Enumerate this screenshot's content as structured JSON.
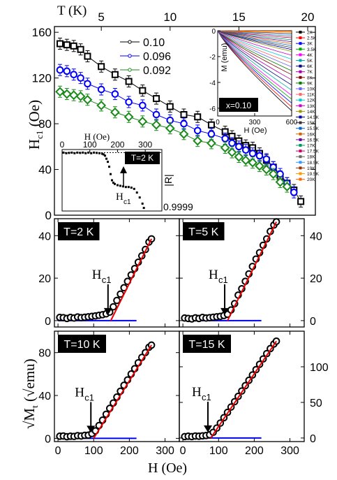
{
  "chart_data": [
    {
      "type": "scatter",
      "xlabel": "T (K)",
      "ylabel": "Hc1 (Oe)",
      "ylim": [
        0,
        165
      ],
      "xlim": [
        2,
        20
      ],
      "x_ticks": [
        "5",
        "10",
        "15",
        "20"
      ],
      "y_ticks": [
        "0",
        "40",
        "80",
        "120",
        "160"
      ],
      "legend_position": "top-center",
      "series": [
        {
          "name": "0.10",
          "color": "#000000",
          "marker": "square",
          "x": [
            2,
            2.5,
            3,
            3.5,
            4,
            5,
            6,
            7,
            8,
            9,
            10,
            11,
            12,
            13,
            14,
            14.5,
            15,
            15.5,
            16,
            16.5,
            17,
            17.5,
            18,
            18.5,
            19,
            19.5
          ],
          "y": [
            150,
            149,
            148,
            145,
            139,
            130,
            123,
            117,
            109,
            102,
            95,
            88,
            86,
            79,
            73,
            69,
            65,
            61,
            59,
            54,
            48,
            42,
            34,
            28,
            22,
            12
          ]
        },
        {
          "name": "0.096",
          "color": "#0000ff",
          "marker": "circle",
          "x": [
            2,
            2.5,
            3,
            3.5,
            4,
            5,
            6,
            7,
            8,
            9,
            10,
            11,
            12,
            13,
            14,
            14.5,
            15,
            15.5,
            16,
            16.5,
            17,
            17.5,
            18,
            18.5,
            19
          ],
          "y": [
            127,
            126,
            123,
            120,
            115,
            110,
            106,
            99,
            96,
            88,
            83,
            80,
            74,
            71,
            67,
            63,
            60,
            57,
            54,
            52,
            49,
            42,
            36,
            28,
            20
          ]
        },
        {
          "name": "0.092",
          "color": "#1a8a1a",
          "marker": "diamond",
          "x": [
            2,
            2.5,
            3,
            3.5,
            4,
            5,
            6,
            7,
            8,
            9,
            10,
            11,
            12,
            13,
            14,
            14.5,
            15,
            15.5,
            16,
            16.5,
            17,
            17.5,
            18,
            18.5
          ],
          "y": [
            108,
            106,
            105,
            104,
            101,
            96,
            90,
            86,
            82,
            79,
            76,
            71,
            65,
            63,
            59,
            55,
            51,
            48,
            46,
            43,
            40,
            36,
            29,
            25
          ]
        }
      ]
    },
    {
      "type": "line",
      "xlabel": "H (Oe)",
      "ylabel": "M (emu)",
      "xlim": [
        0,
        600
      ],
      "ylim": [
        -6.6,
        0
      ],
      "x_ticks": [
        "0",
        "300",
        "600"
      ],
      "y_ticks": [
        "0",
        "-2",
        "-4",
        "-6"
      ],
      "annotation": "x=0.10",
      "legend_position": "right",
      "legend_labels": [
        "2K",
        "2.5K",
        "3K",
        "3.5K",
        "4K",
        "5K",
        "6K",
        "7K",
        "8K",
        "9K",
        "10K",
        "11K",
        "12K",
        "13K",
        "14K",
        "14.5K",
        "15K",
        "15.5K",
        "16K",
        "16.5K",
        "17K",
        "17.5K",
        "18K",
        "18.5K",
        "19K",
        "19.5K",
        "20K"
      ],
      "legend_colors": [
        "#000000",
        "#ff0000",
        "#0000ff",
        "#00aa00",
        "#ff00ff",
        "#00aaaa",
        "#000080",
        "#aa00aa",
        "#800000",
        "#008000",
        "#6666ff",
        "#ff6666",
        "#00cccc",
        "#cc00cc",
        "#999900",
        "#0000aa",
        "#333333",
        "#0066cc",
        "#cc6600",
        "#660099",
        "#009966",
        "#cc0066",
        "#666666",
        "#3399ff",
        "#993300",
        "#ff9900",
        "#ff6600"
      ],
      "end_values": [
        -6.2,
        -5.9,
        -5.6,
        -5.3,
        -5.0,
        -4.6,
        -4.2,
        -3.8,
        -3.4,
        -3.1,
        -2.8,
        -2.5,
        -2.2,
        -1.9,
        -1.6,
        -1.45,
        -1.3,
        -1.15,
        -1.0,
        -0.85,
        -0.7,
        -0.55,
        -0.42,
        -0.3,
        -0.2,
        -0.1,
        -0.03
      ]
    },
    {
      "type": "scatter",
      "xlabel": "H (Oe)",
      "ylabel": "|R|",
      "xlim": [
        0,
        360
      ],
      "x_ticks": [
        "0",
        "100",
        "200",
        "300"
      ],
      "annotation": "T=2 K",
      "arrow_label": "Hc1",
      "value_label": "0.9999",
      "points": [
        [
          5,
          0.95
        ],
        [
          15,
          0.94
        ],
        [
          25,
          0.945
        ],
        [
          35,
          0.95
        ],
        [
          45,
          0.94
        ],
        [
          55,
          0.95
        ],
        [
          65,
          0.945
        ],
        [
          75,
          0.95
        ],
        [
          85,
          0.94
        ],
        [
          95,
          0.95
        ],
        [
          105,
          0.94
        ],
        [
          115,
          0.95
        ],
        [
          125,
          0.945
        ],
        [
          135,
          0.94
        ],
        [
          145,
          0.93
        ],
        [
          150,
          0.92
        ],
        [
          155,
          0.9
        ],
        [
          160,
          0.85
        ],
        [
          165,
          0.8
        ],
        [
          170,
          0.72
        ],
        [
          175,
          0.6
        ],
        [
          180,
          0.5
        ],
        [
          185,
          0.46
        ],
        [
          190,
          0.44
        ],
        [
          200,
          0.42
        ],
        [
          210,
          0.41
        ],
        [
          220,
          0.4
        ],
        [
          230,
          0.39
        ],
        [
          240,
          0.39
        ],
        [
          250,
          0.38
        ],
        [
          260,
          0.36
        ],
        [
          270,
          0.3
        ],
        [
          280,
          0.22
        ],
        [
          290,
          0.12
        ],
        [
          295,
          0.05
        ]
      ]
    },
    {
      "type": "line",
      "annotation": "T=2 K",
      "arrow_label": "Hc1",
      "xlim": [
        -10,
        340
      ],
      "ylim": [
        -3,
        48
      ],
      "y_ticks": [
        "0",
        "20",
        "40"
      ],
      "fit_line": {
        "x": [
          148,
          262
        ],
        "y": [
          0,
          38.5
        ]
      },
      "baseline": {
        "x": [
          0,
          220
        ],
        "y": [
          0,
          0
        ]
      },
      "points": [
        [
          5,
          1.5
        ],
        [
          15,
          1.4
        ],
        [
          25,
          1.0
        ],
        [
          35,
          1.5
        ],
        [
          45,
          1.2
        ],
        [
          55,
          1.7
        ],
        [
          65,
          1.4
        ],
        [
          75,
          1.6
        ],
        [
          85,
          1.8
        ],
        [
          95,
          2.0
        ],
        [
          105,
          2.2
        ],
        [
          115,
          2.5
        ],
        [
          125,
          2.8
        ],
        [
          135,
          3.2
        ],
        [
          145,
          4.0
        ],
        [
          155,
          6.5
        ],
        [
          165,
          9.5
        ],
        [
          175,
          12.5
        ],
        [
          185,
          15.5
        ],
        [
          195,
          18.5
        ],
        [
          205,
          21.5
        ],
        [
          215,
          24.5
        ],
        [
          225,
          27.5
        ],
        [
          235,
          30.5
        ],
        [
          245,
          33.5
        ],
        [
          255,
          37.0
        ],
        [
          262,
          38.5
        ]
      ]
    },
    {
      "type": "line",
      "annotation": "T=5 K",
      "arrow_label": "Hc1",
      "xlim": [
        -10,
        340
      ],
      "ylim": [
        -3,
        48
      ],
      "y_ticks": [
        "0",
        "20",
        "40"
      ],
      "fit_line": {
        "x": [
          125,
          262
        ],
        "y": [
          0,
          46.5
        ]
      },
      "baseline": {
        "x": [
          0,
          220
        ],
        "y": [
          0,
          0
        ]
      },
      "points": [
        [
          5,
          1.2
        ],
        [
          15,
          1.0
        ],
        [
          25,
          0.8
        ],
        [
          35,
          1.3
        ],
        [
          45,
          1.0
        ],
        [
          55,
          1.5
        ],
        [
          65,
          1.2
        ],
        [
          75,
          1.4
        ],
        [
          85,
          1.6
        ],
        [
          95,
          1.8
        ],
        [
          105,
          2.0
        ],
        [
          115,
          2.4
        ],
        [
          125,
          3.0
        ],
        [
          135,
          5.0
        ],
        [
          145,
          8.0
        ],
        [
          155,
          12.0
        ],
        [
          165,
          15.0
        ],
        [
          175,
          18.5
        ],
        [
          185,
          22.0
        ],
        [
          195,
          25.5
        ],
        [
          205,
          29.0
        ],
        [
          215,
          32.0
        ],
        [
          225,
          35.5
        ],
        [
          235,
          38.5
        ],
        [
          245,
          42.0
        ],
        [
          255,
          45.0
        ],
        [
          262,
          46.5
        ]
      ]
    },
    {
      "type": "line",
      "annotation": "T=10 K",
      "arrow_label": "Hc1",
      "xlim": [
        -10,
        340
      ],
      "ylim": [
        -3,
        100
      ],
      "y_ticks": [
        "0",
        "40",
        "80"
      ],
      "fit_line": {
        "x": [
          100,
          262
        ],
        "y": [
          0,
          87
        ]
      },
      "baseline": {
        "x": [
          0,
          220
        ],
        "y": [
          0,
          0
        ]
      },
      "points": [
        [
          5,
          2.0
        ],
        [
          15,
          2.2
        ],
        [
          25,
          1.5
        ],
        [
          35,
          2.0
        ],
        [
          45,
          1.8
        ],
        [
          55,
          2.5
        ],
        [
          65,
          2.2
        ],
        [
          75,
          2.8
        ],
        [
          85,
          3.0
        ],
        [
          95,
          4.5
        ],
        [
          105,
          7.0
        ],
        [
          115,
          12.0
        ],
        [
          125,
          17.0
        ],
        [
          135,
          22.5
        ],
        [
          145,
          28.0
        ],
        [
          155,
          33.0
        ],
        [
          165,
          38.5
        ],
        [
          175,
          44.0
        ],
        [
          185,
          49.5
        ],
        [
          195,
          54.5
        ],
        [
          205,
          60.0
        ],
        [
          215,
          65.0
        ],
        [
          225,
          70.5
        ],
        [
          235,
          75.5
        ],
        [
          245,
          80.0
        ],
        [
          255,
          85.0
        ],
        [
          262,
          87.0
        ]
      ]
    },
    {
      "type": "line",
      "annotation": "T=15 K",
      "arrow_label": "Hc1",
      "xlim": [
        -10,
        340
      ],
      "ylim": [
        -5,
        150
      ],
      "y_ticks": [
        "0",
        "50",
        "100"
      ],
      "fit_line": {
        "x": [
          78,
          262
        ],
        "y": [
          0,
          136
        ]
      },
      "baseline": {
        "x": [
          0,
          220
        ],
        "y": [
          0,
          0
        ]
      },
      "points": [
        [
          5,
          2.0
        ],
        [
          15,
          2.5
        ],
        [
          25,
          2.0
        ],
        [
          35,
          2.8
        ],
        [
          45,
          2.5
        ],
        [
          55,
          3.0
        ],
        [
          65,
          3.5
        ],
        [
          75,
          4.5
        ],
        [
          85,
          8.0
        ],
        [
          95,
          14.0
        ],
        [
          105,
          21.0
        ],
        [
          115,
          28.5
        ],
        [
          125,
          36.0
        ],
        [
          135,
          43.5
        ],
        [
          145,
          51.0
        ],
        [
          155,
          58.5
        ],
        [
          165,
          66.0
        ],
        [
          175,
          73.5
        ],
        [
          185,
          81.0
        ],
        [
          195,
          88.5
        ],
        [
          205,
          96.0
        ],
        [
          215,
          103.5
        ],
        [
          225,
          111.0
        ],
        [
          235,
          118.5
        ],
        [
          245,
          125.5
        ],
        [
          255,
          132.0
        ],
        [
          262,
          136.0
        ]
      ]
    }
  ],
  "labels": {
    "top_axis": "T (K)",
    "left_top": "H",
    "left_top_sub": "c1",
    "left_top_unit": "(Oe)",
    "left_bottom": "√M",
    "left_bottom_sub": "t",
    "left_bottom_unit": "(√emu)",
    "bottom_axis": "H (Oe)",
    "x_ticks_bottom": [
      "0",
      "100",
      "200",
      "300"
    ]
  }
}
